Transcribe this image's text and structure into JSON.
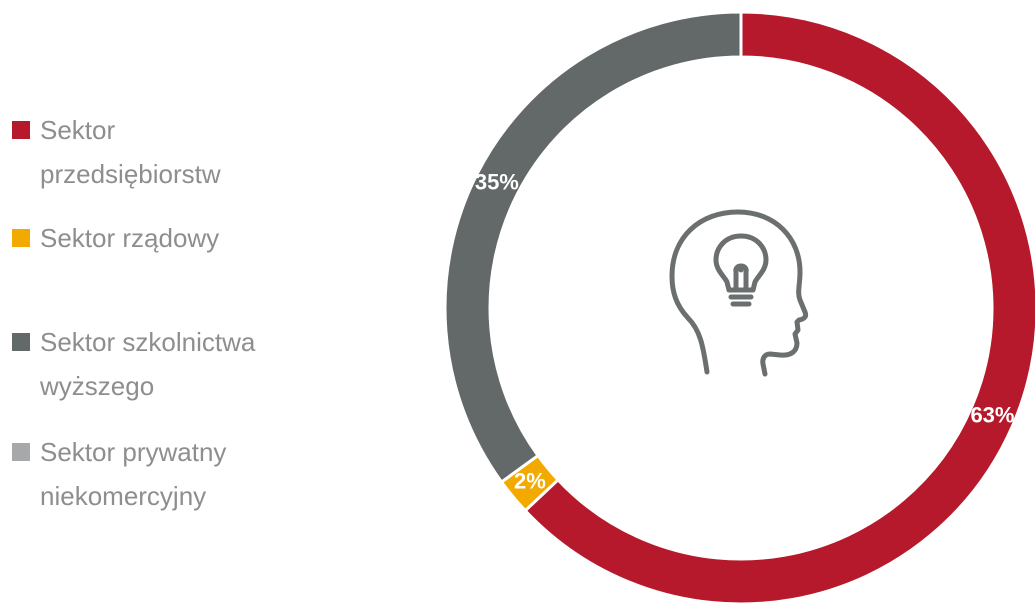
{
  "chart_data": {
    "type": "donut",
    "categories": [
      "Sektor przedsiębiorstw",
      "Sektor rządowy",
      "Sektor szkolnictwa wyższego",
      "Sektor prywatny niekomercyjny"
    ],
    "values": [
      63,
      2,
      35,
      0
    ],
    "value_labels": [
      "63%",
      "2%",
      "35%",
      null
    ],
    "colors": [
      "#b5192b",
      "#f2a900",
      "#636869",
      "#a6a8aa"
    ],
    "start_angle": 0,
    "direction": "clockwise",
    "legend": "left"
  }
}
